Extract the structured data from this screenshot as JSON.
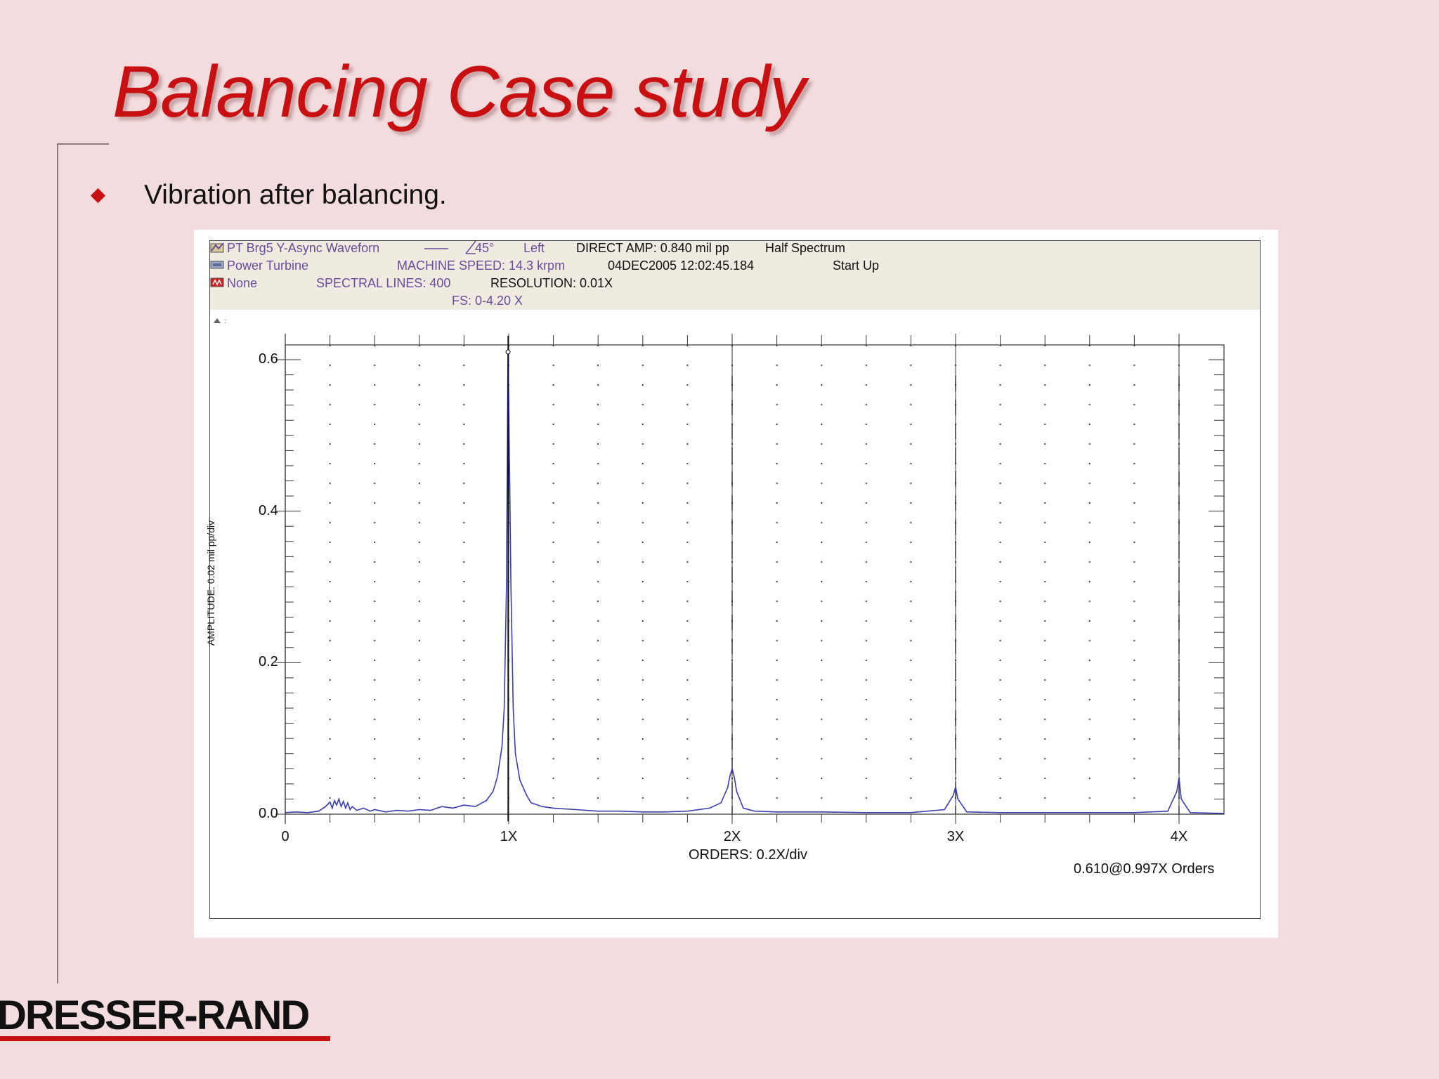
{
  "slide": {
    "title": "Balancing Case study",
    "bullet": "Vibration after balancing.",
    "logo": "DRESSER-RAND"
  },
  "plot_header": {
    "row1": {
      "signal": "PT Brg5 Y-Async Waveforn",
      "angle": "45°",
      "side": "Left",
      "direct_amp": "DIRECT AMP: 0.840 mil pp",
      "spectrum": "Half Spectrum"
    },
    "row2": {
      "machine": "Power Turbine",
      "speed": "MACHINE SPEED: 14.3 krpm",
      "timestamp": "04DEC2005 12:02:45.184",
      "state": "Start Up"
    },
    "row3": {
      "none": "None",
      "lines": "SPECTRAL LINES: 400",
      "resolution": "RESOLUTION:  0.01X"
    },
    "row4": {
      "fs": "FS: 0-4.20 X"
    },
    "cursor_readout": "0.610@0.997X Orders"
  },
  "icons": [
    "waveform-icon",
    "machine-icon",
    "alarm-icon",
    "zoom-icon"
  ],
  "chart_data": {
    "type": "line",
    "title": "",
    "xlabel": "ORDERS: 0.2X/div",
    "ylabel": "AMPLITUDE: 0.02 mil pp/div",
    "xlim": [
      0,
      4.2
    ],
    "ylim": [
      0,
      0.62
    ],
    "x_ticks": [
      0,
      1,
      2,
      3,
      4
    ],
    "x_tick_labels": [
      "0",
      "1X",
      "2X",
      "3X",
      "4X"
    ],
    "y_ticks": [
      0.0,
      0.2,
      0.4,
      0.6
    ],
    "y_tick_labels": [
      "0.0",
      "0.2",
      "0.4",
      "0.6"
    ],
    "grid": "dotted",
    "line_color": "#3c3cb4",
    "cursor": {
      "x": 0.997,
      "y": 0.61
    },
    "harmonic_markers": [
      2,
      3,
      4
    ],
    "series": [
      {
        "x": [
          0,
          0.05,
          0.1,
          0.15,
          0.18,
          0.2,
          0.21,
          0.22,
          0.23,
          0.24,
          0.25,
          0.26,
          0.27,
          0.28,
          0.29,
          0.3,
          0.32,
          0.35,
          0.38,
          0.4,
          0.45,
          0.5,
          0.55,
          0.6,
          0.65,
          0.7,
          0.75,
          0.8,
          0.85,
          0.9,
          0.93,
          0.95,
          0.97,
          0.98,
          0.99,
          0.997,
          1.0,
          1.01,
          1.02,
          1.03,
          1.05,
          1.08,
          1.1,
          1.15,
          1.2,
          1.3,
          1.4,
          1.5,
          1.6,
          1.7,
          1.8,
          1.9,
          1.95,
          1.98,
          1.99,
          2.0,
          2.01,
          2.02,
          2.05,
          2.1,
          2.2,
          2.4,
          2.6,
          2.8,
          2.95,
          2.99,
          3.0,
          3.01,
          3.05,
          3.2,
          3.4,
          3.6,
          3.8,
          3.95,
          3.99,
          4.0,
          4.01,
          4.05,
          4.2
        ],
        "y": [
          0.002,
          0.003,
          0.002,
          0.004,
          0.01,
          0.016,
          0.008,
          0.018,
          0.012,
          0.02,
          0.01,
          0.017,
          0.008,
          0.015,
          0.006,
          0.01,
          0.005,
          0.008,
          0.004,
          0.006,
          0.003,
          0.005,
          0.004,
          0.006,
          0.005,
          0.01,
          0.008,
          0.012,
          0.01,
          0.018,
          0.03,
          0.05,
          0.09,
          0.14,
          0.3,
          0.61,
          0.55,
          0.3,
          0.14,
          0.08,
          0.045,
          0.025,
          0.015,
          0.01,
          0.008,
          0.006,
          0.004,
          0.004,
          0.003,
          0.003,
          0.004,
          0.008,
          0.015,
          0.035,
          0.05,
          0.06,
          0.048,
          0.03,
          0.008,
          0.004,
          0.003,
          0.003,
          0.002,
          0.002,
          0.006,
          0.025,
          0.036,
          0.02,
          0.003,
          0.002,
          0.002,
          0.002,
          0.002,
          0.004,
          0.03,
          0.048,
          0.02,
          0.002,
          0.001
        ]
      }
    ]
  }
}
